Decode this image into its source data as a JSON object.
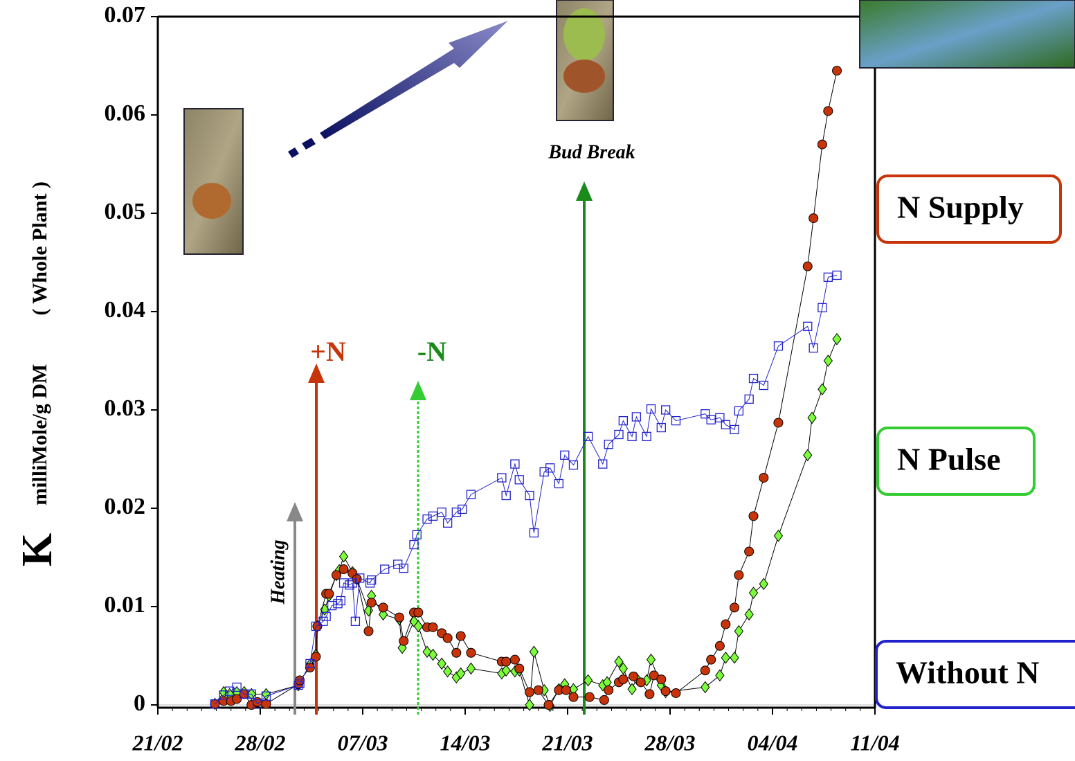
{
  "chart_data": {
    "type": "line",
    "y_label": [
      "K",
      "milliMole/g DM",
      "( Whole Plant )"
    ],
    "annotations": [
      "+N",
      "-N",
      "Bud Break",
      "Heating"
    ],
    "xlim": [
      0,
      49
    ],
    "xticks": [
      {
        "value": 0,
        "label": "21/02"
      },
      {
        "value": 7,
        "label": "28/02"
      },
      {
        "value": 14,
        "label": "07/03"
      },
      {
        "value": 21,
        "label": "14/03"
      },
      {
        "value": 28,
        "label": "21/03"
      },
      {
        "value": 35,
        "label": "28/03"
      },
      {
        "value": 42,
        "label": "04/04"
      },
      {
        "value": 49,
        "label": "11/04"
      }
    ],
    "ylim": [
      0,
      0.07
    ],
    "yticks": [
      0,
      0.01,
      0.02,
      0.03,
      0.04,
      0.05,
      0.06,
      0.07
    ],
    "series": [
      {
        "name": "N Supply",
        "color": "#c8340a",
        "marker": "circle",
        "x": [
          3.9,
          4.5,
          5.0,
          5.4,
          5.9,
          6.4,
          6.8,
          7.4,
          9.6,
          9.7,
          10.4,
          10.8,
          10.9,
          11.5,
          11.7,
          12.2,
          12.7,
          13.3,
          13.6,
          14.4,
          14.6,
          15.4,
          16.5,
          16.8,
          17.5,
          17.8,
          18.4,
          18.8,
          19.4,
          19.8,
          20.4,
          20.7,
          21.4,
          23.5,
          23.8,
          24.4,
          24.7,
          25.4,
          26.0,
          26.7,
          27.4,
          27.9,
          28.4,
          29.5,
          30.5,
          30.8,
          31.5,
          31.8,
          32.5,
          33.0,
          33.6,
          33.9,
          34.4,
          34.7,
          35.4,
          37.4,
          37.8,
          38.4,
          38.8,
          39.4,
          39.7,
          40.4,
          40.7,
          41.4,
          42.4,
          44.4,
          44.8,
          45.4,
          45.8,
          46.4
        ],
        "values": [
          0.0001,
          0.0004,
          0.0004,
          0.0006,
          0.0011,
          0,
          0.0003,
          0.0001,
          0.0021,
          0.0025,
          0.0038,
          0.0049,
          0.008,
          0.0113,
          0.0113,
          0.0132,
          0.0138,
          0.0134,
          0.0128,
          0.0075,
          0.0104,
          0.0099,
          0.0089,
          0.0065,
          0.0094,
          0.0094,
          0.0079,
          0.0079,
          0.0073,
          0.0068,
          0.0053,
          0.007,
          0.0053,
          0.0044,
          0.0044,
          0.0046,
          0.0037,
          0.0013,
          0.0015,
          0,
          0.0015,
          0.0015,
          0.0008,
          0.0008,
          0.0005,
          0.0015,
          0.0023,
          0.0026,
          0.0029,
          0.0023,
          0.0011,
          0.003,
          0.0026,
          0.0014,
          0.0012,
          0.0035,
          0.0046,
          0.006,
          0.0082,
          0.0099,
          0.0132,
          0.0156,
          0.0192,
          0.0231,
          0.0287,
          0.0446,
          0.0495,
          0.057,
          0.0604,
          0.0645
        ]
      },
      {
        "name": "N Pulse",
        "color": "#33cc33",
        "marker": "diamond",
        "x": [
          3.9,
          4.5,
          4.9,
          5.4,
          5.9,
          6.4,
          7.4,
          9.6,
          9.7,
          10.4,
          10.8,
          10.9,
          11.4,
          11.7,
          12.2,
          12.4,
          12.7,
          13.3,
          13.6,
          14.4,
          14.6,
          15.4,
          16.5,
          16.7,
          17.5,
          17.8,
          18.4,
          18.8,
          19.4,
          19.8,
          20.4,
          20.7,
          21.4,
          23.5,
          23.8,
          24.4,
          24.7,
          25.4,
          25.7,
          26.4,
          26.8,
          27.4,
          27.8,
          28.4,
          29.4,
          30.4,
          30.7,
          31.5,
          31.8,
          32.4,
          32.7,
          33.4,
          33.7,
          34.4,
          34.7,
          37.4,
          38.4,
          38.8,
          39.4,
          39.7,
          40.4,
          40.7,
          41.4,
          42.4,
          44.4,
          44.7,
          45.4,
          45.8,
          46.4
        ],
        "values": [
          0.0001,
          0.0013,
          0.0011,
          0.0013,
          0.0013,
          0.0011,
          0.0011,
          0.002,
          0.0023,
          0.0041,
          0.0051,
          0.008,
          0.0097,
          0.0111,
          0.0132,
          0.0137,
          0.0151,
          0.0135,
          0.0128,
          0.0096,
          0.0111,
          0.0092,
          0.0087,
          0.0058,
          0.0085,
          0.008,
          0.0054,
          0.0051,
          0.0042,
          0.0034,
          0.0028,
          0.0032,
          0.0037,
          0.0032,
          0.0035,
          0.0034,
          0.0035,
          0,
          0.0054,
          0.0015,
          -0.0001,
          0.0016,
          0.0021,
          0.0016,
          0.0025,
          0.002,
          0.0023,
          0.0044,
          0.0037,
          0.0016,
          0.0027,
          0.0025,
          0.0046,
          0.002,
          0.0013,
          0.0018,
          0.003,
          0.0048,
          0.0048,
          0.0075,
          0.0092,
          0.0114,
          0.0123,
          0.0172,
          0.0254,
          0.0292,
          0.0321,
          0.035,
          0.0372
        ]
      },
      {
        "name": "Without N",
        "color": "#2222cc",
        "marker": "square",
        "x": [
          3.9,
          4.5,
          4.9,
          5.4,
          5.9,
          6.4,
          6.8,
          7.4,
          9.6,
          9.7,
          10.4,
          10.8,
          11.3,
          11.5,
          11.9,
          12.3,
          12.5,
          12.7,
          13.1,
          13.3,
          13.5,
          13.8,
          14.5,
          14.6,
          15.5,
          16.4,
          16.8,
          17.5,
          17.7,
          18.4,
          18.8,
          19.4,
          19.8,
          20.4,
          20.8,
          21.4,
          23.5,
          23.8,
          24.4,
          24.7,
          25.4,
          25.7,
          26.4,
          26.8,
          27.4,
          27.8,
          28.4,
          29.4,
          30.4,
          30.8,
          31.5,
          31.8,
          32.4,
          32.7,
          33.4,
          33.7,
          34.4,
          34.7,
          35.4,
          37.4,
          37.8,
          38.4,
          38.8,
          39.4,
          39.7,
          40.4,
          40.7,
          41.4,
          42.4,
          44.4,
          44.8,
          45.4,
          45.8,
          46.4
        ],
        "values": [
          0.0001,
          0.001,
          0.0014,
          0.0018,
          0.0011,
          0.0011,
          0.0001,
          0.0009,
          0.002,
          0.0022,
          0.0042,
          0.008,
          0.0085,
          0.009,
          0.0101,
          0.0103,
          0.0106,
          0.0124,
          0.0122,
          0.0124,
          0.0085,
          0.0129,
          0.0124,
          0.0127,
          0.0138,
          0.0143,
          0.0139,
          0.0163,
          0.0173,
          0.0189,
          0.0192,
          0.0196,
          0.0185,
          0.0196,
          0.0199,
          0.0214,
          0.0231,
          0.0213,
          0.0245,
          0.0229,
          0.0213,
          0.0175,
          0.0237,
          0.0241,
          0.0225,
          0.0254,
          0.0244,
          0.0273,
          0.0245,
          0.0265,
          0.0275,
          0.0289,
          0.0273,
          0.0293,
          0.0273,
          0.0301,
          0.0282,
          0.03,
          0.0289,
          0.0296,
          0.029,
          0.0292,
          0.0285,
          0.028,
          0.0299,
          0.0311,
          0.0332,
          0.0325,
          0.0365,
          0.0385,
          0.0363,
          0.0404,
          0.0435,
          0.0437
        ]
      }
    ]
  }
}
